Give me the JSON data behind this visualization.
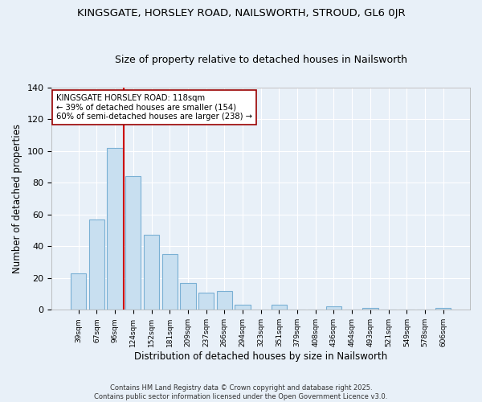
{
  "title": "KINGSGATE, HORSLEY ROAD, NAILSWORTH, STROUD, GL6 0JR",
  "subtitle": "Size of property relative to detached houses in Nailsworth",
  "xlabel": "Distribution of detached houses by size in Nailsworth",
  "ylabel": "Number of detached properties",
  "bar_labels": [
    "39sqm",
    "67sqm",
    "96sqm",
    "124sqm",
    "152sqm",
    "181sqm",
    "209sqm",
    "237sqm",
    "266sqm",
    "294sqm",
    "323sqm",
    "351sqm",
    "379sqm",
    "408sqm",
    "436sqm",
    "464sqm",
    "493sqm",
    "521sqm",
    "549sqm",
    "578sqm",
    "606sqm"
  ],
  "bar_values": [
    23,
    57,
    102,
    84,
    47,
    35,
    17,
    11,
    12,
    3,
    0,
    3,
    0,
    0,
    2,
    0,
    1,
    0,
    0,
    0,
    1
  ],
  "bar_color": "#c8dff0",
  "bar_edge_color": "#7ab0d4",
  "vline_x_data": 2.5,
  "vline_color": "#cc0000",
  "ylim": [
    0,
    140
  ],
  "yticks": [
    0,
    20,
    40,
    60,
    80,
    100,
    120,
    140
  ],
  "annotation_title": "KINGSGATE HORSLEY ROAD: 118sqm",
  "annotation_line1": "← 39% of detached houses are smaller (154)",
  "annotation_line2": "60% of semi-detached houses are larger (238) →",
  "footnote1": "Contains HM Land Registry data © Crown copyright and database right 2025.",
  "footnote2": "Contains public sector information licensed under the Open Government Licence v3.0.",
  "background_color": "#e8f0f8",
  "plot_bg_color": "#e8f0f8",
  "grid_color": "#ffffff"
}
